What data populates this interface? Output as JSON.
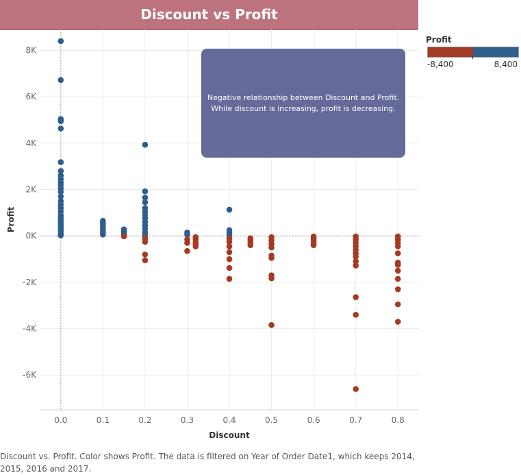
{
  "title": "Discount vs Profit",
  "legend": {
    "title": "Profit",
    "min_label": "-8,400",
    "max_label": "8,400",
    "negative_color": "#a53a24",
    "positive_color": "#2d5e8e"
  },
  "annotation": {
    "line1": "Negative relationship between Discount and Profit.",
    "line2": "While discount is increasing, profit is decreasing."
  },
  "caption": "Discount vs. Profit.  Color shows Profit. The data is filtered on Year of Order Date1, which keeps 2014, 2015, 2016 and 2017.",
  "chart_data": {
    "type": "scatter",
    "xlabel": "Discount",
    "ylabel": "Profit",
    "xlim": [
      -0.05,
      0.85
    ],
    "ylim": [
      -7500,
      8900
    ],
    "x_ticks": [
      0.0,
      0.1,
      0.2,
      0.3,
      0.4,
      0.5,
      0.6,
      0.7,
      0.8
    ],
    "x_tick_labels": [
      "0.0",
      "0.1",
      "0.2",
      "0.3",
      "0.4",
      "0.5",
      "0.6",
      "0.7",
      "0.8"
    ],
    "y_ticks": [
      8000,
      6000,
      4000,
      2000,
      0,
      -2000,
      -4000,
      -6000
    ],
    "y_tick_labels": [
      "8K",
      "6K",
      "4K",
      "2K",
      "0K",
      "-2K",
      "-4K",
      "-6K"
    ],
    "grid": true,
    "points": [
      {
        "x": 0.0,
        "y": 8400
      },
      {
        "x": 0.0,
        "y": 6720
      },
      {
        "x": 0.0,
        "y": 5040
      },
      {
        "x": 0.0,
        "y": 4950
      },
      {
        "x": 0.0,
        "y": 4630
      },
      {
        "x": 0.0,
        "y": 3180
      },
      {
        "x": 0.0,
        "y": 2800
      },
      {
        "x": 0.0,
        "y": 2600
      },
      {
        "x": 0.0,
        "y": 2450
      },
      {
        "x": 0.0,
        "y": 2300
      },
      {
        "x": 0.0,
        "y": 2200
      },
      {
        "x": 0.0,
        "y": 2050
      },
      {
        "x": 0.0,
        "y": 1900
      },
      {
        "x": 0.0,
        "y": 1700
      },
      {
        "x": 0.0,
        "y": 1500
      },
      {
        "x": 0.0,
        "y": 1350
      },
      {
        "x": 0.0,
        "y": 1200
      },
      {
        "x": 0.0,
        "y": 1050
      },
      {
        "x": 0.0,
        "y": 900
      },
      {
        "x": 0.0,
        "y": 800
      },
      {
        "x": 0.0,
        "y": 700
      },
      {
        "x": 0.0,
        "y": 600
      },
      {
        "x": 0.0,
        "y": 500
      },
      {
        "x": 0.0,
        "y": 400
      },
      {
        "x": 0.0,
        "y": 300
      },
      {
        "x": 0.0,
        "y": 200
      },
      {
        "x": 0.0,
        "y": 100
      },
      {
        "x": 0.0,
        "y": 20
      },
      {
        "x": 0.1,
        "y": 650
      },
      {
        "x": 0.1,
        "y": 550
      },
      {
        "x": 0.1,
        "y": 450
      },
      {
        "x": 0.1,
        "y": 350
      },
      {
        "x": 0.1,
        "y": 250
      },
      {
        "x": 0.1,
        "y": 150
      },
      {
        "x": 0.1,
        "y": 60
      },
      {
        "x": 0.15,
        "y": 280
      },
      {
        "x": 0.15,
        "y": 200
      },
      {
        "x": 0.15,
        "y": 120
      },
      {
        "x": 0.15,
        "y": 50
      },
      {
        "x": 0.15,
        "y": -20
      },
      {
        "x": 0.2,
        "y": 3930
      },
      {
        "x": 0.2,
        "y": 1920
      },
      {
        "x": 0.2,
        "y": 1650
      },
      {
        "x": 0.2,
        "y": 1450
      },
      {
        "x": 0.2,
        "y": 1200
      },
      {
        "x": 0.2,
        "y": 1050
      },
      {
        "x": 0.2,
        "y": 900
      },
      {
        "x": 0.2,
        "y": 750
      },
      {
        "x": 0.2,
        "y": 600
      },
      {
        "x": 0.2,
        "y": 450
      },
      {
        "x": 0.2,
        "y": 300
      },
      {
        "x": 0.2,
        "y": 150
      },
      {
        "x": 0.2,
        "y": 40
      },
      {
        "x": 0.2,
        "y": -100
      },
      {
        "x": 0.2,
        "y": -250
      },
      {
        "x": 0.2,
        "y": -800
      },
      {
        "x": 0.2,
        "y": -1050
      },
      {
        "x": 0.3,
        "y": 150
      },
      {
        "x": 0.3,
        "y": 50
      },
      {
        "x": 0.3,
        "y": -150
      },
      {
        "x": 0.3,
        "y": -300
      },
      {
        "x": 0.3,
        "y": -650
      },
      {
        "x": 0.32,
        "y": -50
      },
      {
        "x": 0.32,
        "y": -150
      },
      {
        "x": 0.32,
        "y": -250
      },
      {
        "x": 0.32,
        "y": -350
      },
      {
        "x": 0.32,
        "y": -450
      },
      {
        "x": 0.4,
        "y": 1130
      },
      {
        "x": 0.4,
        "y": 250
      },
      {
        "x": 0.4,
        "y": 150
      },
      {
        "x": 0.4,
        "y": 60
      },
      {
        "x": 0.4,
        "y": -100
      },
      {
        "x": 0.4,
        "y": -250
      },
      {
        "x": 0.4,
        "y": -450
      },
      {
        "x": 0.4,
        "y": -700
      },
      {
        "x": 0.4,
        "y": -1000
      },
      {
        "x": 0.4,
        "y": -1380
      },
      {
        "x": 0.4,
        "y": -1850
      },
      {
        "x": 0.45,
        "y": -100
      },
      {
        "x": 0.45,
        "y": -200
      },
      {
        "x": 0.45,
        "y": -300
      },
      {
        "x": 0.45,
        "y": -400
      },
      {
        "x": 0.5,
        "y": -50
      },
      {
        "x": 0.5,
        "y": -200
      },
      {
        "x": 0.5,
        "y": -350
      },
      {
        "x": 0.5,
        "y": -500
      },
      {
        "x": 0.5,
        "y": -850
      },
      {
        "x": 0.5,
        "y": -950
      },
      {
        "x": 0.5,
        "y": -1700
      },
      {
        "x": 0.5,
        "y": -1830
      },
      {
        "x": 0.5,
        "y": -3840
      },
      {
        "x": 0.6,
        "y": -20
      },
      {
        "x": 0.6,
        "y": -100
      },
      {
        "x": 0.6,
        "y": -200
      },
      {
        "x": 0.6,
        "y": -300
      },
      {
        "x": 0.6,
        "y": -400
      },
      {
        "x": 0.7,
        "y": -20
      },
      {
        "x": 0.7,
        "y": -150
      },
      {
        "x": 0.7,
        "y": -300
      },
      {
        "x": 0.7,
        "y": -450
      },
      {
        "x": 0.7,
        "y": -600
      },
      {
        "x": 0.7,
        "y": -750
      },
      {
        "x": 0.7,
        "y": -900
      },
      {
        "x": 0.7,
        "y": -1100
      },
      {
        "x": 0.7,
        "y": -1280
      },
      {
        "x": 0.7,
        "y": -2640
      },
      {
        "x": 0.7,
        "y": -3400
      },
      {
        "x": 0.7,
        "y": -6600
      },
      {
        "x": 0.8,
        "y": -20
      },
      {
        "x": 0.8,
        "y": -150
      },
      {
        "x": 0.8,
        "y": -300
      },
      {
        "x": 0.8,
        "y": -450
      },
      {
        "x": 0.8,
        "y": -750
      },
      {
        "x": 0.8,
        "y": -1150
      },
      {
        "x": 0.8,
        "y": -1250
      },
      {
        "x": 0.8,
        "y": -1500
      },
      {
        "x": 0.8,
        "y": -1850
      },
      {
        "x": 0.8,
        "y": -2300
      },
      {
        "x": 0.8,
        "y": -2950
      },
      {
        "x": 0.8,
        "y": -3700
      }
    ]
  }
}
